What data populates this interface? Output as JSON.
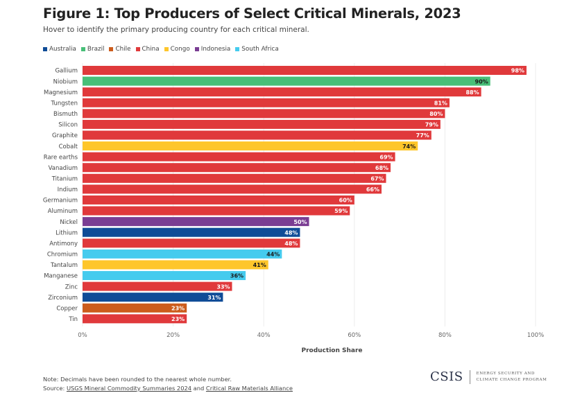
{
  "header": {
    "title": "Figure 1: Top Producers of Select Critical Minerals, 2023",
    "subtitle": "Hover to identify the primary producing country for each critical mineral."
  },
  "colors": {
    "Australia": "#0f4c97",
    "Brazil": "#48bf78",
    "Chile": "#cc5c1c",
    "China": "#e0393b",
    "Congo": "#fec62b",
    "Indonesia": "#7a3d93",
    "South Africa": "#45cbee"
  },
  "label_colors": {
    "Australia": "#ffffff",
    "Brazil": "#1a1a1a",
    "Chile": "#ffffff",
    "China": "#ffffff",
    "Congo": "#1a1a1a",
    "Indonesia": "#ffffff",
    "South Africa": "#1a1a1a"
  },
  "chart_data": {
    "type": "bar",
    "orientation": "horizontal",
    "title": "Figure 1: Top Producers of Select Critical Minerals, 2023",
    "xlabel": "Production Share",
    "ylabel": "",
    "xlim": [
      0,
      100
    ],
    "x_ticks": [
      "0%",
      "20%",
      "40%",
      "60%",
      "80%",
      "100%"
    ],
    "x_tick_values": [
      0,
      20,
      40,
      60,
      80,
      100
    ],
    "grid": true,
    "legend": {
      "placement": "top-left",
      "entries": [
        "Australia",
        "Brazil",
        "Chile",
        "China",
        "Congo",
        "Indonesia",
        "South Africa"
      ]
    },
    "categories": [
      "Gallium",
      "Niobium",
      "Magnesium",
      "Tungsten",
      "Bismuth",
      "Silicon",
      "Graphite",
      "Cobalt",
      "Rare earths",
      "Vanadium",
      "Titanium",
      "Indium",
      "Germanium",
      "Aluminum",
      "Nickel",
      "Lithium",
      "Antimony",
      "Chromium",
      "Tantalum",
      "Manganese",
      "Zinc",
      "Zirconium",
      "Copper",
      "Tin"
    ],
    "values": [
      98,
      90,
      88,
      81,
      80,
      79,
      77,
      74,
      69,
      68,
      67,
      66,
      60,
      59,
      50,
      48,
      48,
      44,
      41,
      36,
      33,
      31,
      23,
      23
    ],
    "countries": [
      "China",
      "Brazil",
      "China",
      "China",
      "China",
      "China",
      "China",
      "Congo",
      "China",
      "China",
      "China",
      "China",
      "China",
      "China",
      "Indonesia",
      "Australia",
      "China",
      "South Africa",
      "Congo",
      "South Africa",
      "China",
      "Australia",
      "Chile",
      "China"
    ],
    "value_suffix": "%"
  },
  "footer": {
    "note": "Note: Decimals have been rounded to the nearest whole number.",
    "source_prefix": "Source: ",
    "source_link_1": "USGS Mineral Commodity Summaries 2024",
    "source_and": " and ",
    "source_link_2": "Critical Raw Materials Alliance"
  },
  "logo": {
    "mark": "CSIS",
    "line1": "ENERGY SECURITY AND",
    "line2": "CLIMATE CHANGE PROGRAM"
  }
}
